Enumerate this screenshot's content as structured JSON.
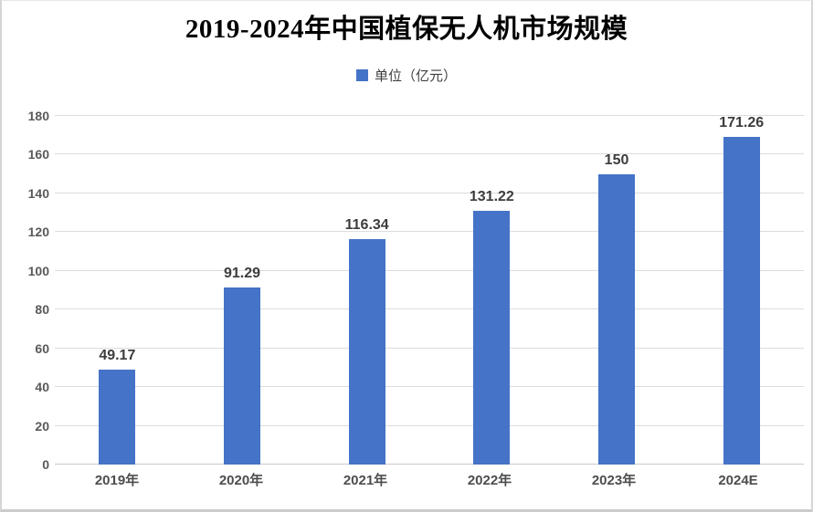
{
  "chart_data": {
    "type": "bar",
    "title": "2019-2024年中国植保无人机市场规模",
    "legend_label": "单位（亿元）",
    "legend_position": "top",
    "categories": [
      "2019年",
      "2020年",
      "2021年",
      "2022年",
      "2023年",
      "2024E"
    ],
    "values": [
      49.17,
      91.29,
      116.34,
      131.22,
      150,
      171.26
    ],
    "xlabel": "",
    "ylabel": "",
    "ylim": [
      0,
      180
    ],
    "yticks": [
      0,
      20,
      40,
      60,
      80,
      100,
      120,
      140,
      160,
      180
    ],
    "grid": true,
    "bar_color": "#4573C7",
    "gridline_color": "#dcdcdc",
    "baseline_color": "#c9c9c9"
  }
}
